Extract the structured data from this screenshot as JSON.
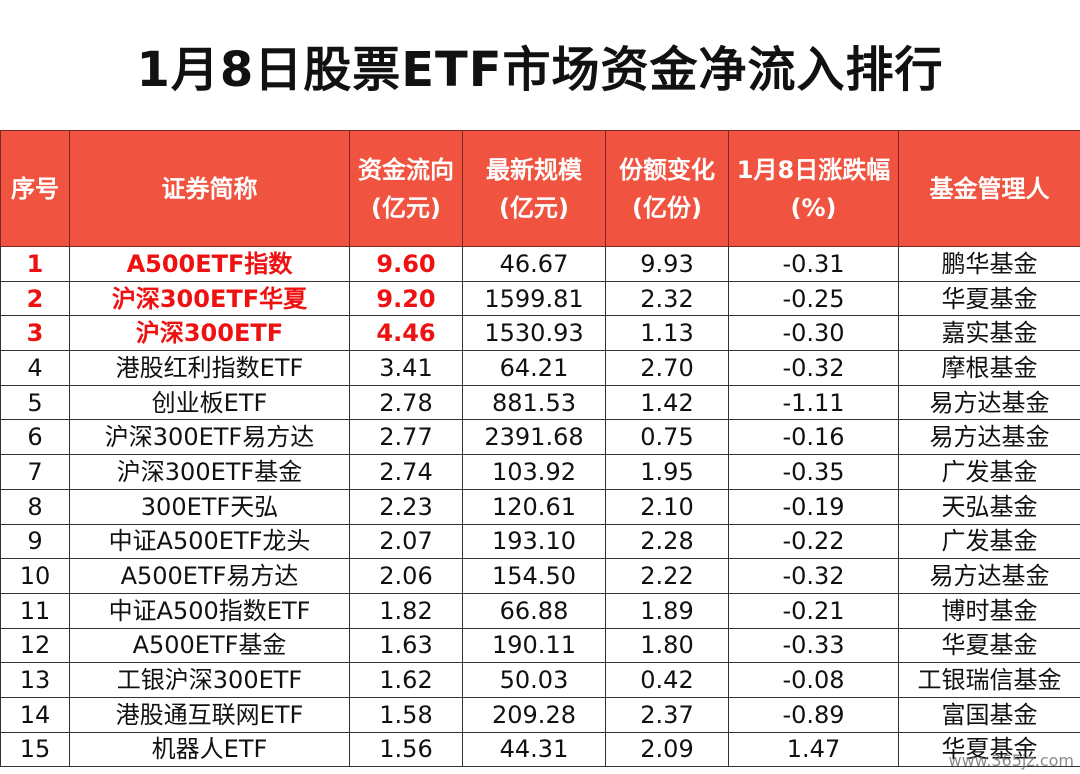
{
  "title": "1月8日股票ETF市场资金净流入排行",
  "headers": {
    "rank": "序号",
    "name": "证券简称",
    "flow_l1": "资金流向",
    "flow_l2": "(亿元)",
    "scale_l1": "最新规模",
    "scale_l2": "(亿元)",
    "share_l1": "份额变化",
    "share_l2": "(亿份)",
    "chg_l1": "1月8日涨跌幅",
    "chg_l2": "(%)",
    "mgr": "基金管理人"
  },
  "rows": [
    {
      "rank": "1",
      "name": "A500ETF指数",
      "flow": "9.60",
      "scale": "46.67",
      "share": "9.93",
      "chg": "-0.31",
      "mgr": "鹏华基金"
    },
    {
      "rank": "2",
      "name": "沪深300ETF华夏",
      "flow": "9.20",
      "scale": "1599.81",
      "share": "2.32",
      "chg": "-0.25",
      "mgr": "华夏基金"
    },
    {
      "rank": "3",
      "name": "沪深300ETF",
      "flow": "4.46",
      "scale": "1530.93",
      "share": "1.13",
      "chg": "-0.30",
      "mgr": "嘉实基金"
    },
    {
      "rank": "4",
      "name": "港股红利指数ETF",
      "flow": "3.41",
      "scale": "64.21",
      "share": "2.70",
      "chg": "-0.32",
      "mgr": "摩根基金"
    },
    {
      "rank": "5",
      "name": "创业板ETF",
      "flow": "2.78",
      "scale": "881.53",
      "share": "1.42",
      "chg": "-1.11",
      "mgr": "易方达基金"
    },
    {
      "rank": "6",
      "name": "沪深300ETF易方达",
      "flow": "2.77",
      "scale": "2391.68",
      "share": "0.75",
      "chg": "-0.16",
      "mgr": "易方达基金"
    },
    {
      "rank": "7",
      "name": "沪深300ETF基金",
      "flow": "2.74",
      "scale": "103.92",
      "share": "1.95",
      "chg": "-0.35",
      "mgr": "广发基金"
    },
    {
      "rank": "8",
      "name": "300ETF天弘",
      "flow": "2.23",
      "scale": "120.61",
      "share": "2.10",
      "chg": "-0.19",
      "mgr": "天弘基金"
    },
    {
      "rank": "9",
      "name": "中证A500ETF龙头",
      "flow": "2.07",
      "scale": "193.10",
      "share": "2.28",
      "chg": "-0.22",
      "mgr": "广发基金"
    },
    {
      "rank": "10",
      "name": "A500ETF易方达",
      "flow": "2.06",
      "scale": "154.50",
      "share": "2.22",
      "chg": "-0.32",
      "mgr": "易方达基金"
    },
    {
      "rank": "11",
      "name": "中证A500指数ETF",
      "flow": "1.82",
      "scale": "66.88",
      "share": "1.89",
      "chg": "-0.21",
      "mgr": "博时基金"
    },
    {
      "rank": "12",
      "name": "A500ETF基金",
      "flow": "1.63",
      "scale": "190.11",
      "share": "1.80",
      "chg": "-0.33",
      "mgr": "华夏基金"
    },
    {
      "rank": "13",
      "name": "工银沪深300ETF",
      "flow": "1.62",
      "scale": "50.03",
      "share": "0.42",
      "chg": "-0.08",
      "mgr": "工银瑞信基金"
    },
    {
      "rank": "14",
      "name": "港股通互联网ETF",
      "flow": "1.58",
      "scale": "209.28",
      "share": "2.37",
      "chg": "-0.89",
      "mgr": "富国基金"
    },
    {
      "rank": "15",
      "name": "机器人ETF",
      "flow": "1.56",
      "scale": "44.31",
      "share": "2.09",
      "chg": "1.47",
      "mgr": "华夏基金"
    }
  ],
  "watermark": "www.365jz.com"
}
